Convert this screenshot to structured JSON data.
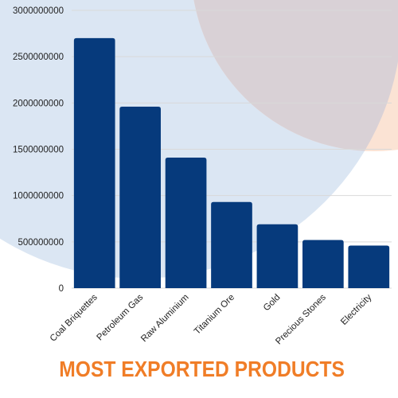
{
  "colors": {
    "bar": "#063a7c",
    "title": "#f07d27",
    "bg_blue": "#dbe6f3",
    "bg_peach": "#fbe3d4",
    "bg_overlap": "#d9d1d6",
    "grid": "#d9d9d9"
  },
  "chart_data": {
    "type": "bar",
    "title": "MOST EXPORTED PRODUCTS",
    "xlabel": "",
    "ylabel": "",
    "categories": [
      "Coal Briquettes",
      "Petroleum Gas",
      "Raw Aluminium",
      "Titanium Ore",
      "Gold",
      "Precious Stones",
      "Electricity"
    ],
    "values": [
      2700000000,
      1960000000,
      1410000000,
      930000000,
      690000000,
      520000000,
      460000000
    ],
    "ylim": [
      0,
      3000000000
    ],
    "yticks": [
      "0",
      "500000000",
      "1000000000",
      "1500000000",
      "2000000000",
      "2500000000",
      "3000000000"
    ],
    "grid": true,
    "legend": "none"
  }
}
